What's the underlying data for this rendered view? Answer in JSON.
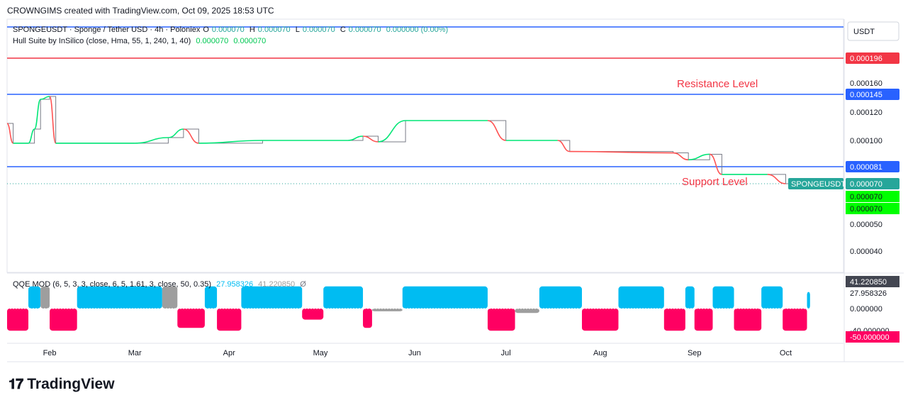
{
  "header": {
    "created_by": "CROWNGIMS created with TradingView.com, Oct 09, 2025 18:53 UTC"
  },
  "main_legend": {
    "symbol": "SPONGEUSDT · Sponge / Tether USD · 4h · Poloniex",
    "o_label": "O",
    "o_val": "0.000070",
    "h_label": "H",
    "h_val": "0.000070",
    "l_label": "L",
    "l_val": "0.000070",
    "c_label": "C",
    "c_val": "0.000070",
    "change": "0.000000 (0.00%)",
    "indicator": "Hull Suite by InSilico (close, Hma, 55, 1, 240, 1, 40)",
    "ind_v1": "0.000070",
    "ind_v2": "0.000070"
  },
  "qqe_legend": {
    "name": "QQE MOD (6, 5, 3, 3, close, 6, 5, 1.61, 3, close, 50, 0.35)",
    "v1": "27.958326",
    "v2": "41.220850",
    "v3": "Ø"
  },
  "brand": {
    "name": "TradingView"
  },
  "colors": {
    "blue_line": "#2962ff",
    "red_line": "#f23645",
    "hull_green": "#00e676",
    "hull_red": "#ff5252",
    "qqe_blue": "#00bcf2",
    "qqe_pink": "#ff0062",
    "qqe_gray": "#9e9e9e",
    "last_label": "#26a69a",
    "ind_label": "#00ff00"
  },
  "chart_data": [
    {
      "type": "line",
      "title": "SPONGEUSDT · Sponge / Tether USD · 4h · Poloniex",
      "currency": "USDT",
      "x": [
        "Feb",
        "Mar",
        "Apr",
        "May",
        "Jun",
        "Jul",
        "Aug",
        "Sep",
        "Oct"
      ],
      "y_ticks": [
        "0.000160",
        "0.000120",
        "0.000100",
        "0.000050",
        "0.000040"
      ],
      "ylim": [
        3e-05,
        0.00021
      ],
      "horizontal_levels": [
        {
          "value": 0.000145,
          "label": "0.000145",
          "color": "#2962ff"
        },
        {
          "value": 8.1e-05,
          "label": "0.000081",
          "color": "#2962ff"
        },
        {
          "value": 0.000196,
          "label": "0.000196",
          "color": "#f23645"
        }
      ],
      "annotations": [
        {
          "text": "Resistance Level",
          "near_value": 0.000145
        },
        {
          "text": "Support Level",
          "near_value": 8.1e-05
        }
      ],
      "last_price": {
        "symbol": "SPONGEUSDT",
        "value": "0.000070"
      },
      "indicator_values": [
        "0.000070",
        "0.000070"
      ],
      "price_series": [
        {
          "t": "Jan 18",
          "v": 0.000112
        },
        {
          "t": "Jan 20",
          "v": 9.8e-05
        },
        {
          "t": "Jan 25",
          "v": 9.8e-05
        },
        {
          "t": "Jan 27",
          "v": 0.000108
        },
        {
          "t": "Jan 29",
          "v": 0.000138
        },
        {
          "t": "Feb 01",
          "v": 0.000142
        },
        {
          "t": "Feb 03",
          "v": 9.8e-05
        },
        {
          "t": "Mar 01",
          "v": 9.8e-05
        },
        {
          "t": "Mar 12",
          "v": 0.000102
        },
        {
          "t": "Mar 17",
          "v": 0.000108
        },
        {
          "t": "Mar 22",
          "v": 9.8e-05
        },
        {
          "t": "Apr 12",
          "v": 0.0001
        },
        {
          "t": "May 10",
          "v": 0.0001
        },
        {
          "t": "May 15",
          "v": 0.000103
        },
        {
          "t": "May 20",
          "v": 9.9e-05
        },
        {
          "t": "May 29",
          "v": 0.000114
        },
        {
          "t": "Jun 25",
          "v": 0.000114
        },
        {
          "t": "Jul 01",
          "v": 0.0001
        },
        {
          "t": "Jul 18",
          "v": 0.0001
        },
        {
          "t": "Jul 22",
          "v": 9.2e-05
        },
        {
          "t": "Aug 25",
          "v": 9.1e-05
        },
        {
          "t": "Aug 30",
          "v": 8.6e-05
        },
        {
          "t": "Sep 06",
          "v": 9e-05
        },
        {
          "t": "Sep 10",
          "v": 7.6e-05
        },
        {
          "t": "Sep 25",
          "v": 7.6e-05
        },
        {
          "t": "Oct 01",
          "v": 7e-05
        }
      ]
    },
    {
      "type": "bar",
      "title": "QQE MOD (6, 5, 3, 3, close, 6, 5, 1.61, 3, close, 50, 0.35)",
      "y_ticks": [
        "27.958326",
        "0.000000",
        "-40.000000"
      ],
      "highlighted_values": [
        "41.220850",
        "-50.000000"
      ],
      "ylim": [
        -50,
        50
      ],
      "segments": [
        {
          "from": "Jan 18",
          "to": "Jan 25",
          "value": -40,
          "color": "pink"
        },
        {
          "from": "Jan 25",
          "to": "Jan 29",
          "value": 40,
          "color": "blue"
        },
        {
          "from": "Jan 29",
          "to": "Feb 01",
          "value": 40,
          "color": "gray"
        },
        {
          "from": "Feb 01",
          "to": "Feb 10",
          "value": -40,
          "color": "pink"
        },
        {
          "from": "Feb 10",
          "to": "Mar 10",
          "value": 40,
          "color": "blue"
        },
        {
          "from": "Mar 10",
          "to": "Mar 15",
          "value": 40,
          "color": "gray"
        },
        {
          "from": "Mar 15",
          "to": "Mar 24",
          "value": -35,
          "color": "pink"
        },
        {
          "from": "Mar 24",
          "to": "Mar 28",
          "value": 40,
          "color": "blue"
        },
        {
          "from": "Mar 28",
          "to": "Apr 05",
          "value": -40,
          "color": "pink"
        },
        {
          "from": "Apr 05",
          "to": "Apr 25",
          "value": 40,
          "color": "blue"
        },
        {
          "from": "Apr 25",
          "to": "May 02",
          "value": -20,
          "color": "pink"
        },
        {
          "from": "May 02",
          "to": "May 15",
          "value": 40,
          "color": "blue"
        },
        {
          "from": "May 15",
          "to": "May 18",
          "value": -35,
          "color": "pink"
        },
        {
          "from": "May 18",
          "to": "May 28",
          "value": -5,
          "color": "gray"
        },
        {
          "from": "May 28",
          "to": "Jun 25",
          "value": 40,
          "color": "blue"
        },
        {
          "from": "Jun 25",
          "to": "Jul 04",
          "value": -40,
          "color": "pink"
        },
        {
          "from": "Jul 04",
          "to": "Jul 12",
          "value": -8,
          "color": "gray"
        },
        {
          "from": "Jul 12",
          "to": "Jul 26",
          "value": 40,
          "color": "blue"
        },
        {
          "from": "Jul 26",
          "to": "Aug 07",
          "value": -40,
          "color": "pink"
        },
        {
          "from": "Aug 07",
          "to": "Aug 22",
          "value": 40,
          "color": "blue"
        },
        {
          "from": "Aug 22",
          "to": "Aug 29",
          "value": -40,
          "color": "pink"
        },
        {
          "from": "Aug 29",
          "to": "Sep 01",
          "value": 40,
          "color": "blue"
        },
        {
          "from": "Sep 01",
          "to": "Sep 07",
          "value": -40,
          "color": "pink"
        },
        {
          "from": "Sep 07",
          "to": "Sep 14",
          "value": 40,
          "color": "blue"
        },
        {
          "from": "Sep 14",
          "to": "Sep 23",
          "value": -40,
          "color": "pink"
        },
        {
          "from": "Sep 23",
          "to": "Sep 30",
          "value": 40,
          "color": "blue"
        },
        {
          "from": "Sep 30",
          "to": "Oct 08",
          "value": -40,
          "color": "pink"
        },
        {
          "from": "Oct 08",
          "to": "Oct 09",
          "value": 30,
          "color": "blue"
        }
      ]
    }
  ]
}
